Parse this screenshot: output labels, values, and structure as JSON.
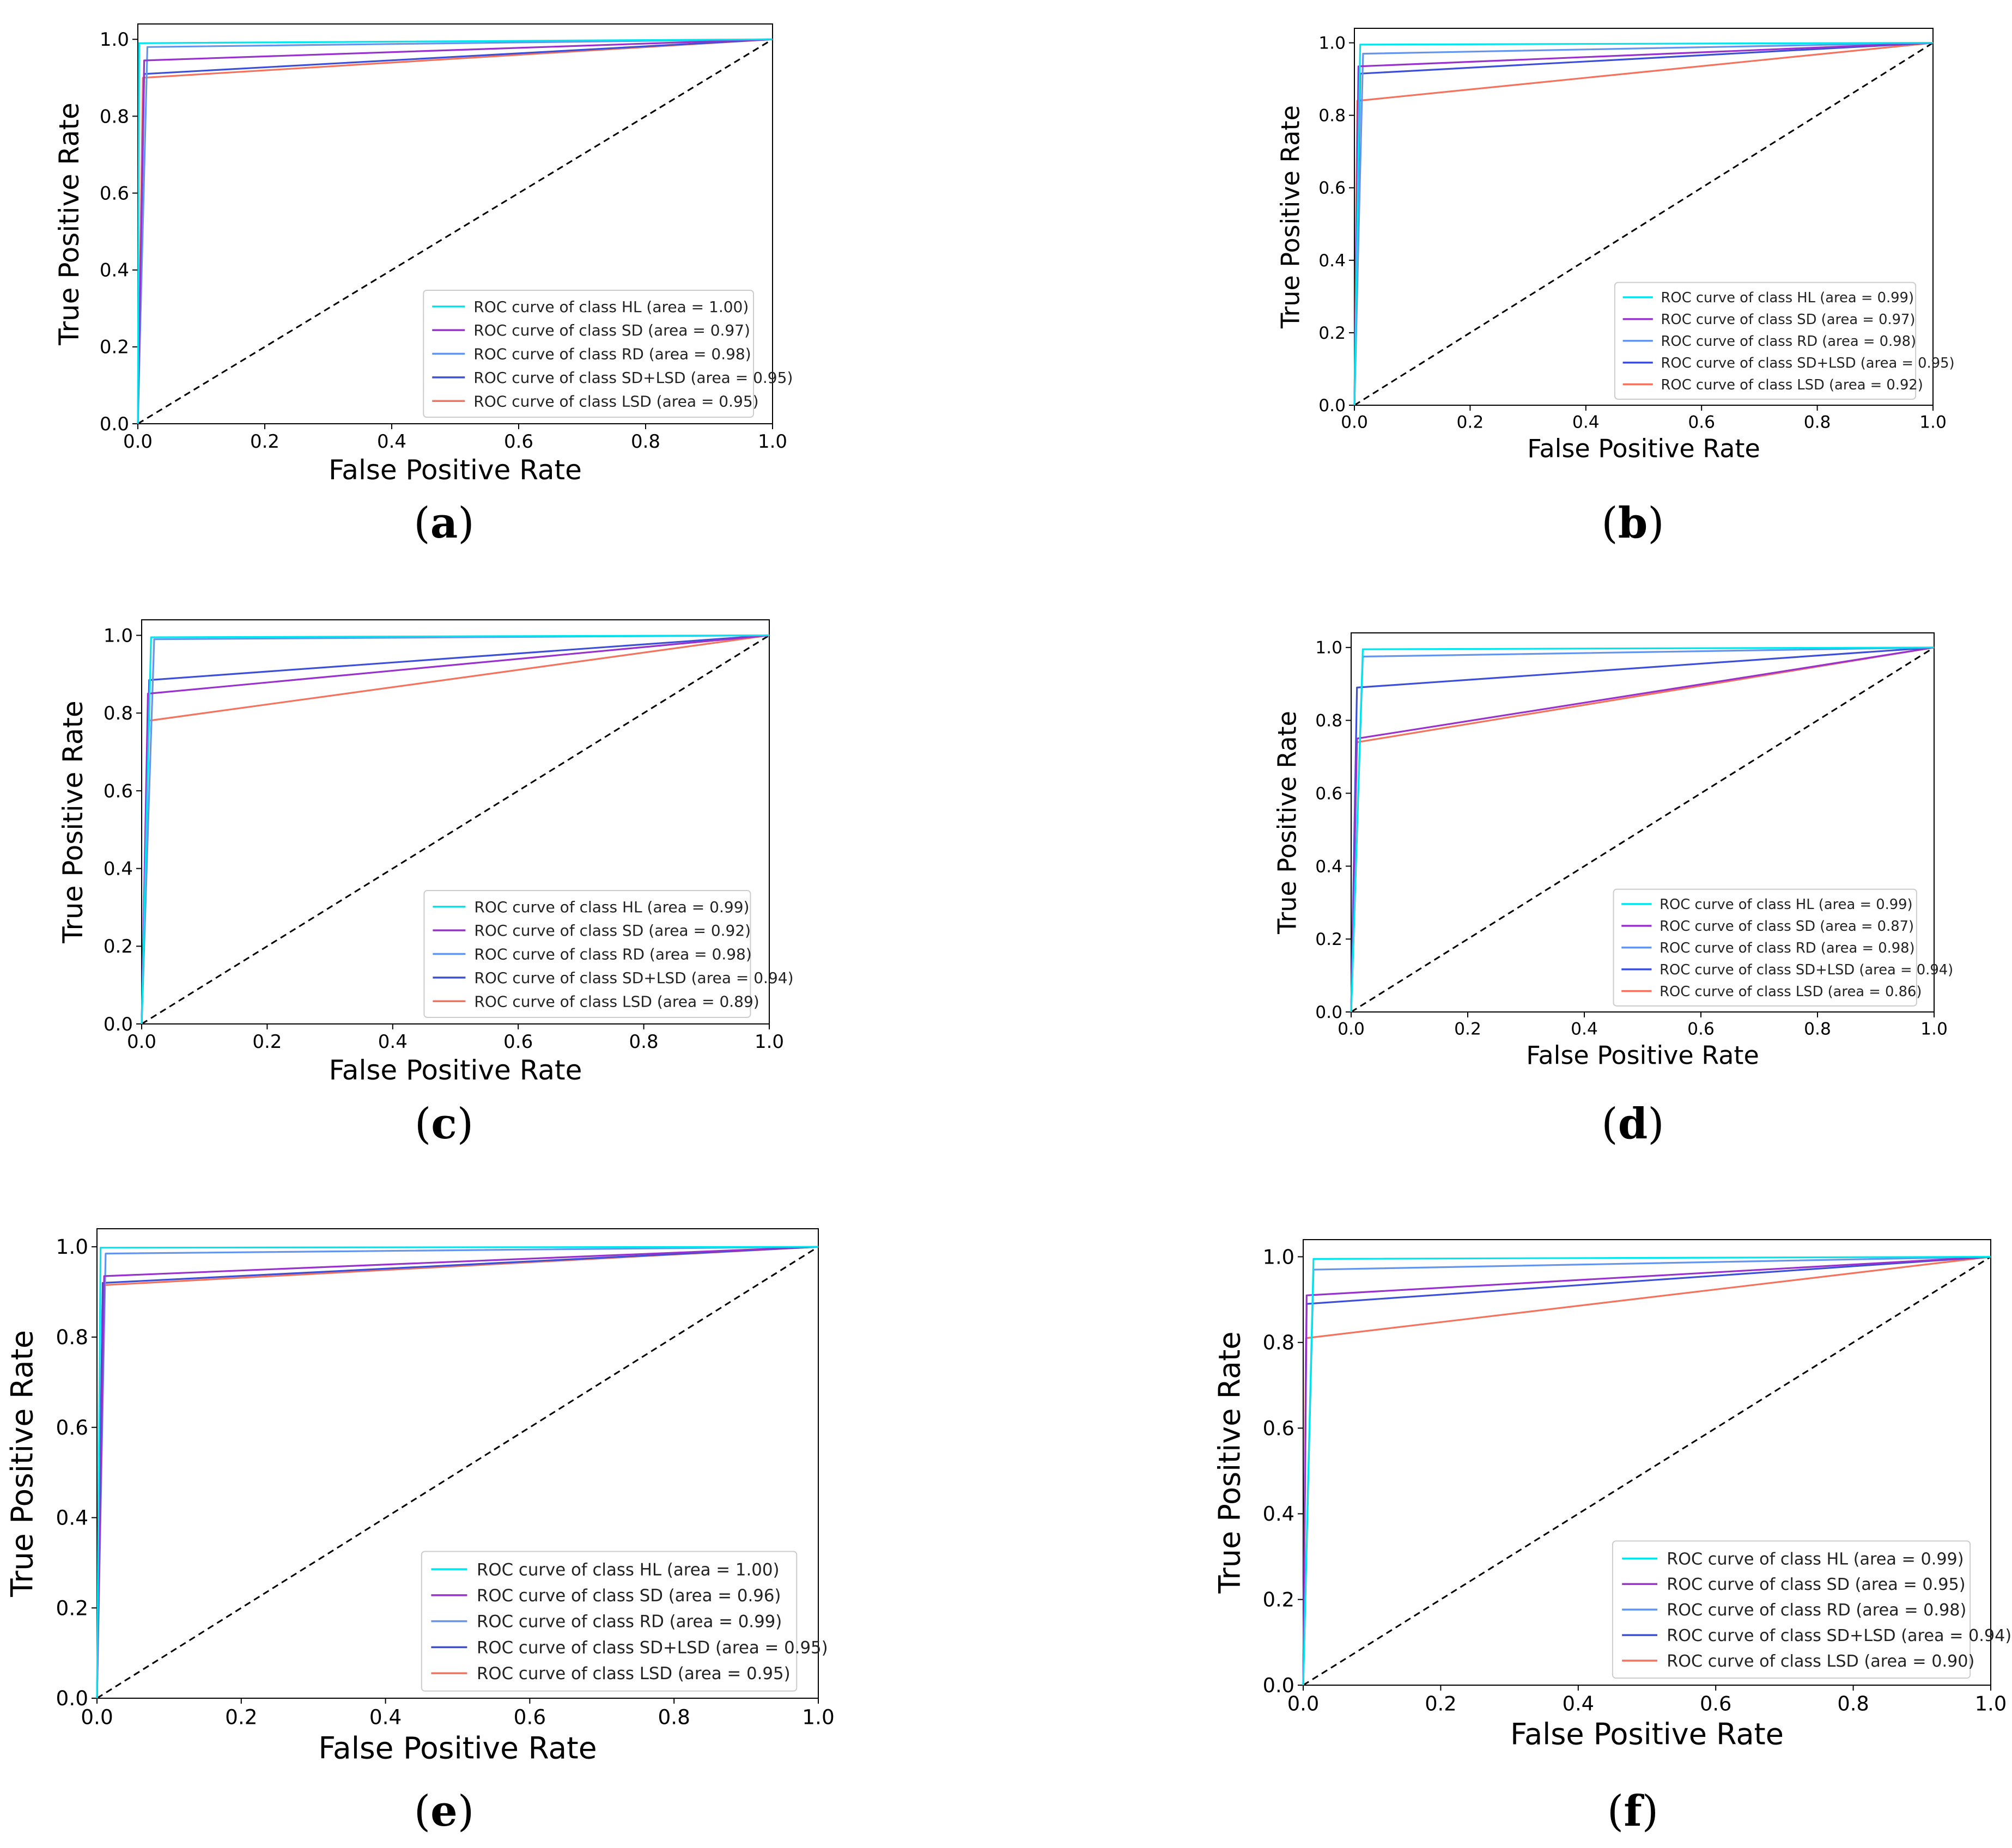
{
  "figure": {
    "panels": [
      {
        "label": "a"
      },
      {
        "label": "b"
      },
      {
        "label": "c"
      },
      {
        "label": "d"
      },
      {
        "label": "e"
      },
      {
        "label": "f"
      }
    ]
  },
  "colors": {
    "HL": "#00e5ee",
    "SD": "#9932cc",
    "RD": "#6495ed",
    "SD+LSD": "#3c4fd6",
    "LSD": "#f4735e",
    "diagonal": "#000000"
  },
  "chart_data": [
    {
      "type": "line",
      "panel": "a",
      "xlabel": "False Positive Rate",
      "ylabel": "True Positive Rate",
      "xlim": [
        0.0,
        1.0
      ],
      "ylim": [
        0.0,
        1.0
      ],
      "xticks": [
        "0.0",
        "0.2",
        "0.4",
        "0.6",
        "0.8",
        "1.0"
      ],
      "yticks": [
        "0.0",
        "0.2",
        "0.4",
        "0.6",
        "0.8",
        "1.0"
      ],
      "legend_position": "lower-right",
      "series": [
        {
          "key": "HL",
          "label": "ROC curve of class HL (area = 1.00)",
          "x": [
            0,
            0.002,
            1
          ],
          "y": [
            0,
            0.99,
            1
          ]
        },
        {
          "key": "SD",
          "label": "ROC curve of class SD (area = 0.97)",
          "x": [
            0,
            0.01,
            1
          ],
          "y": [
            0,
            0.945,
            1
          ]
        },
        {
          "key": "RD",
          "label": "ROC curve of class RD (area = 0.98)",
          "x": [
            0,
            0.015,
            1
          ],
          "y": [
            0,
            0.98,
            1
          ]
        },
        {
          "key": "SD+LSD",
          "label": "ROC curve of class SD+LSD (area = 0.95)",
          "x": [
            0,
            0.01,
            1
          ],
          "y": [
            0,
            0.91,
            1
          ]
        },
        {
          "key": "LSD",
          "label": "ROC curve of class LSD (area = 0.95)",
          "x": [
            0,
            0.008,
            1
          ],
          "y": [
            0,
            0.9,
            1
          ]
        }
      ]
    },
    {
      "type": "line",
      "panel": "b",
      "xlabel": "False Positive Rate",
      "ylabel": "True Positive Rate",
      "xlim": [
        0.0,
        1.0
      ],
      "ylim": [
        0.0,
        1.0
      ],
      "xticks": [
        "0.0",
        "0.2",
        "0.4",
        "0.6",
        "0.8",
        "1.0"
      ],
      "yticks": [
        "0.0",
        "0.2",
        "0.4",
        "0.6",
        "0.8",
        "1.0"
      ],
      "legend_position": "lower-right",
      "series": [
        {
          "key": "HL",
          "label": "ROC curve of class HL (area = 0.99)",
          "x": [
            0,
            0.01,
            1
          ],
          "y": [
            0,
            0.995,
            1
          ]
        },
        {
          "key": "SD",
          "label": "ROC curve of class SD (area = 0.97)",
          "x": [
            0,
            0.007,
            1
          ],
          "y": [
            0,
            0.935,
            1
          ]
        },
        {
          "key": "RD",
          "label": "ROC curve of class RD (area = 0.98)",
          "x": [
            0,
            0.015,
            1
          ],
          "y": [
            0,
            0.97,
            1
          ]
        },
        {
          "key": "SD+LSD",
          "label": "ROC curve of class SD+LSD (area = 0.95)",
          "x": [
            0,
            0.01,
            1
          ],
          "y": [
            0,
            0.915,
            1
          ]
        },
        {
          "key": "LSD",
          "label": "ROC curve of class LSD (area = 0.92)",
          "x": [
            0,
            0.005,
            1
          ],
          "y": [
            0,
            0.84,
            1
          ]
        }
      ]
    },
    {
      "type": "line",
      "panel": "c",
      "xlabel": "False Positive Rate",
      "ylabel": "True Positive Rate",
      "xlim": [
        0.0,
        1.0
      ],
      "ylim": [
        0.0,
        1.0
      ],
      "xticks": [
        "0.0",
        "0.2",
        "0.4",
        "0.6",
        "0.8",
        "1.0"
      ],
      "yticks": [
        "0.0",
        "0.2",
        "0.4",
        "0.6",
        "0.8",
        "1.0"
      ],
      "legend_position": "lower-right",
      "series": [
        {
          "key": "HL",
          "label": "ROC curve of class HL (area = 0.99)",
          "x": [
            0,
            0.015,
            1
          ],
          "y": [
            0,
            0.995,
            1
          ]
        },
        {
          "key": "SD",
          "label": "ROC curve of class SD (area = 0.92)",
          "x": [
            0,
            0.01,
            1
          ],
          "y": [
            0,
            0.85,
            1
          ]
        },
        {
          "key": "RD",
          "label": "ROC curve of class RD (area = 0.98)",
          "x": [
            0,
            0.02,
            1
          ],
          "y": [
            0,
            0.99,
            1
          ]
        },
        {
          "key": "SD+LSD",
          "label": "ROC curve of class SD+LSD (area = 0.94)",
          "x": [
            0,
            0.012,
            1
          ],
          "y": [
            0,
            0.885,
            1
          ]
        },
        {
          "key": "LSD",
          "label": "ROC curve of class LSD (area = 0.89)",
          "x": [
            0,
            0.01,
            1
          ],
          "y": [
            0,
            0.78,
            1
          ]
        }
      ]
    },
    {
      "type": "line",
      "panel": "d",
      "xlabel": "False Positive Rate",
      "ylabel": "True Positive Rate",
      "xlim": [
        0.0,
        1.0
      ],
      "ylim": [
        0.0,
        1.0
      ],
      "xticks": [
        "0.0",
        "0.2",
        "0.4",
        "0.6",
        "0.8",
        "1.0"
      ],
      "yticks": [
        "0.0",
        "0.2",
        "0.4",
        "0.6",
        "0.8",
        "1.0"
      ],
      "legend_position": "lower-right",
      "series": [
        {
          "key": "HL",
          "label": "ROC curve of class HL (area = 0.99)",
          "x": [
            0,
            0.02,
            1
          ],
          "y": [
            0,
            0.995,
            1
          ]
        },
        {
          "key": "SD",
          "label": "ROC curve of class SD (area = 0.87)",
          "x": [
            0,
            0.01,
            1
          ],
          "y": [
            0,
            0.75,
            1
          ]
        },
        {
          "key": "RD",
          "label": "ROC curve of class RD (area = 0.98)",
          "x": [
            0,
            0.02,
            1
          ],
          "y": [
            0,
            0.975,
            1
          ]
        },
        {
          "key": "SD+LSD",
          "label": "ROC curve of class SD+LSD (area = 0.94)",
          "x": [
            0,
            0.01,
            1
          ],
          "y": [
            0,
            0.89,
            1
          ]
        },
        {
          "key": "LSD",
          "label": "ROC curve of class LSD (area = 0.86)",
          "x": [
            0,
            0.01,
            1
          ],
          "y": [
            0,
            0.74,
            1
          ]
        }
      ]
    },
    {
      "type": "line",
      "panel": "e",
      "xlabel": "False Positive Rate",
      "ylabel": "True Positive Rate",
      "xlim": [
        0.0,
        1.0
      ],
      "ylim": [
        0.0,
        1.0
      ],
      "xticks": [
        "0.0",
        "0.2",
        "0.4",
        "0.6",
        "0.8",
        "1.0"
      ],
      "yticks": [
        "0.0",
        "0.2",
        "0.4",
        "0.6",
        "0.8",
        "1.0"
      ],
      "legend_position": "lower-right",
      "series": [
        {
          "key": "HL",
          "label": "ROC curve of class HL (area = 1.00)",
          "x": [
            0,
            0.005,
            1
          ],
          "y": [
            0,
            0.998,
            1
          ]
        },
        {
          "key": "SD",
          "label": "ROC curve of class SD (area = 0.96)",
          "x": [
            0,
            0.01,
            1
          ],
          "y": [
            0,
            0.935,
            1
          ]
        },
        {
          "key": "RD",
          "label": "ROC curve of class RD (area = 0.99)",
          "x": [
            0,
            0.012,
            1
          ],
          "y": [
            0,
            0.985,
            1
          ]
        },
        {
          "key": "SD+LSD",
          "label": "ROC curve of class SD+LSD (area = 0.95)",
          "x": [
            0,
            0.008,
            1
          ],
          "y": [
            0,
            0.92,
            1
          ]
        },
        {
          "key": "LSD",
          "label": "ROC curve of class LSD (area = 0.95)",
          "x": [
            0,
            0.008,
            1
          ],
          "y": [
            0,
            0.915,
            1
          ]
        }
      ]
    },
    {
      "type": "line",
      "panel": "f",
      "xlabel": "False Positive Rate",
      "ylabel": "True Positive Rate",
      "xlim": [
        0.0,
        1.0
      ],
      "ylim": [
        0.0,
        1.0
      ],
      "xticks": [
        "0.0",
        "0.2",
        "0.4",
        "0.6",
        "0.8",
        "1.0"
      ],
      "yticks": [
        "0.0",
        "0.2",
        "0.4",
        "0.6",
        "0.8",
        "1.0"
      ],
      "legend_position": "lower-right",
      "series": [
        {
          "key": "HL",
          "label": "ROC curve of class HL (area = 0.99)",
          "x": [
            0,
            0.015,
            1
          ],
          "y": [
            0,
            0.995,
            1
          ]
        },
        {
          "key": "SD",
          "label": "ROC curve of class SD (area = 0.95)",
          "x": [
            0,
            0.005,
            1
          ],
          "y": [
            0,
            0.91,
            1
          ]
        },
        {
          "key": "RD",
          "label": "ROC curve of class RD (area = 0.98)",
          "x": [
            0,
            0.015,
            1
          ],
          "y": [
            0,
            0.97,
            1
          ]
        },
        {
          "key": "SD+LSD",
          "label": "ROC curve of class SD+LSD (area = 0.94)",
          "x": [
            0,
            0.005,
            1
          ],
          "y": [
            0,
            0.89,
            1
          ]
        },
        {
          "key": "LSD",
          "label": "ROC curve of class LSD (area = 0.90)",
          "x": [
            0,
            0.004,
            1
          ],
          "y": [
            0,
            0.81,
            1
          ]
        }
      ]
    }
  ]
}
